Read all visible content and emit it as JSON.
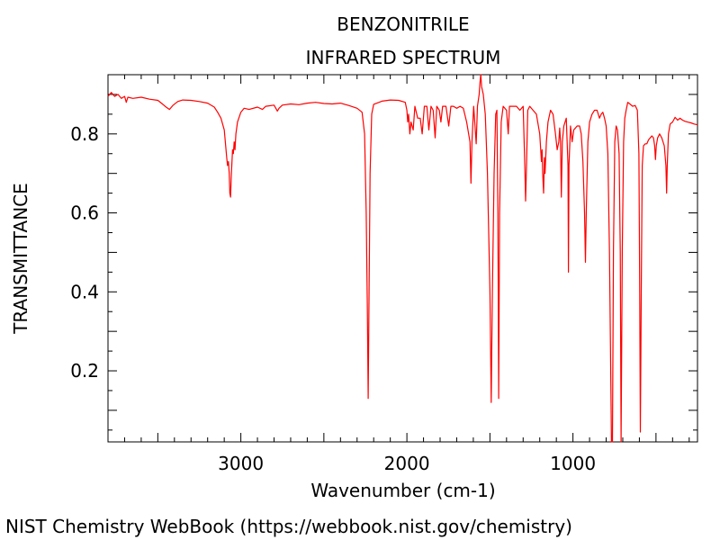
{
  "chart_data": {
    "type": "line",
    "title": "BENZONITRILE",
    "subtitle": "INFRARED SPECTRUM",
    "xlabel": "Wavenumber (cm-1)",
    "ylabel": "TRANSMITTANCE",
    "xlim": [
      3800,
      250
    ],
    "ylim": [
      0.02,
      0.95
    ],
    "x_reversed": true,
    "grid": false,
    "x_ticks": [
      {
        "value": 3000,
        "label": "3000"
      },
      {
        "value": 2000,
        "label": "2000"
      },
      {
        "value": 1000,
        "label": "1000"
      }
    ],
    "y_ticks": [
      {
        "value": 0.8,
        "label": "0.8"
      },
      {
        "value": 0.6,
        "label": "0.6"
      },
      {
        "value": 0.4,
        "label": "0.4"
      },
      {
        "value": 0.2,
        "label": "0.2"
      }
    ],
    "series": [
      {
        "color": "#ff0000",
        "points": [
          [
            3800,
            0.895
          ],
          [
            3780,
            0.905
          ],
          [
            3760,
            0.895
          ],
          [
            3740,
            0.9
          ],
          [
            3720,
            0.89
          ],
          [
            3700,
            0.895
          ],
          [
            3690,
            0.88
          ],
          [
            3680,
            0.893
          ],
          [
            3650,
            0.89
          ],
          [
            3600,
            0.893
          ],
          [
            3550,
            0.888
          ],
          [
            3500,
            0.885
          ],
          [
            3470,
            0.875
          ],
          [
            3450,
            0.868
          ],
          [
            3430,
            0.862
          ],
          [
            3410,
            0.872
          ],
          [
            3380,
            0.882
          ],
          [
            3350,
            0.886
          ],
          [
            3300,
            0.885
          ],
          [
            3250,
            0.882
          ],
          [
            3200,
            0.878
          ],
          [
            3160,
            0.868
          ],
          [
            3140,
            0.855
          ],
          [
            3120,
            0.84
          ],
          [
            3100,
            0.81
          ],
          [
            3085,
            0.74
          ],
          [
            3080,
            0.72
          ],
          [
            3075,
            0.73
          ],
          [
            3070,
            0.7
          ],
          [
            3066,
            0.65
          ],
          [
            3062,
            0.64
          ],
          [
            3058,
            0.69
          ],
          [
            3050,
            0.76
          ],
          [
            3045,
            0.75
          ],
          [
            3040,
            0.78
          ],
          [
            3035,
            0.76
          ],
          [
            3030,
            0.8
          ],
          [
            3020,
            0.83
          ],
          [
            3000,
            0.855
          ],
          [
            2980,
            0.865
          ],
          [
            2950,
            0.862
          ],
          [
            2900,
            0.868
          ],
          [
            2870,
            0.862
          ],
          [
            2850,
            0.87
          ],
          [
            2800,
            0.873
          ],
          [
            2780,
            0.858
          ],
          [
            2770,
            0.865
          ],
          [
            2750,
            0.873
          ],
          [
            2700,
            0.876
          ],
          [
            2650,
            0.874
          ],
          [
            2600,
            0.878
          ],
          [
            2550,
            0.88
          ],
          [
            2500,
            0.877
          ],
          [
            2450,
            0.876
          ],
          [
            2400,
            0.878
          ],
          [
            2350,
            0.872
          ],
          [
            2300,
            0.865
          ],
          [
            2270,
            0.855
          ],
          [
            2255,
            0.8
          ],
          [
            2245,
            0.6
          ],
          [
            2238,
            0.35
          ],
          [
            2233,
            0.13
          ],
          [
            2229,
            0.35
          ],
          [
            2222,
            0.7
          ],
          [
            2212,
            0.85
          ],
          [
            2200,
            0.875
          ],
          [
            2150,
            0.883
          ],
          [
            2100,
            0.886
          ],
          [
            2050,
            0.885
          ],
          [
            2010,
            0.88
          ],
          [
            2000,
            0.86
          ],
          [
            1995,
            0.83
          ],
          [
            1990,
            0.85
          ],
          [
            1982,
            0.8
          ],
          [
            1975,
            0.83
          ],
          [
            1962,
            0.81
          ],
          [
            1952,
            0.87
          ],
          [
            1935,
            0.84
          ],
          [
            1920,
            0.84
          ],
          [
            1908,
            0.8
          ],
          [
            1895,
            0.87
          ],
          [
            1880,
            0.87
          ],
          [
            1868,
            0.81
          ],
          [
            1855,
            0.87
          ],
          [
            1842,
            0.86
          ],
          [
            1830,
            0.79
          ],
          [
            1820,
            0.87
          ],
          [
            1805,
            0.86
          ],
          [
            1795,
            0.83
          ],
          [
            1785,
            0.87
          ],
          [
            1765,
            0.87
          ],
          [
            1748,
            0.82
          ],
          [
            1735,
            0.87
          ],
          [
            1720,
            0.87
          ],
          [
            1700,
            0.865
          ],
          [
            1680,
            0.87
          ],
          [
            1660,
            0.865
          ],
          [
            1640,
            0.83
          ],
          [
            1628,
            0.8
          ],
          [
            1620,
            0.78
          ],
          [
            1614,
            0.675
          ],
          [
            1608,
            0.78
          ],
          [
            1598,
            0.87
          ],
          [
            1590,
            0.82
          ],
          [
            1583,
            0.775
          ],
          [
            1575,
            0.87
          ],
          [
            1565,
            0.9
          ],
          [
            1560,
            0.93
          ],
          [
            1555,
            0.95
          ],
          [
            1550,
            0.92
          ],
          [
            1540,
            0.9
          ],
          [
            1528,
            0.85
          ],
          [
            1515,
            0.7
          ],
          [
            1500,
            0.4
          ],
          [
            1492,
            0.12
          ],
          [
            1485,
            0.4
          ],
          [
            1475,
            0.7
          ],
          [
            1465,
            0.85
          ],
          [
            1458,
            0.86
          ],
          [
            1452,
            0.6
          ],
          [
            1447,
            0.13
          ],
          [
            1442,
            0.6
          ],
          [
            1432,
            0.83
          ],
          [
            1420,
            0.87
          ],
          [
            1400,
            0.86
          ],
          [
            1390,
            0.8
          ],
          [
            1382,
            0.87
          ],
          [
            1360,
            0.87
          ],
          [
            1340,
            0.87
          ],
          [
            1320,
            0.86
          ],
          [
            1300,
            0.87
          ],
          [
            1290,
            0.72
          ],
          [
            1285,
            0.63
          ],
          [
            1280,
            0.72
          ],
          [
            1272,
            0.86
          ],
          [
            1260,
            0.87
          ],
          [
            1240,
            0.86
          ],
          [
            1220,
            0.85
          ],
          [
            1200,
            0.8
          ],
          [
            1190,
            0.73
          ],
          [
            1186,
            0.76
          ],
          [
            1182,
            0.7
          ],
          [
            1177,
            0.65
          ],
          [
            1172,
            0.74
          ],
          [
            1168,
            0.7
          ],
          [
            1160,
            0.78
          ],
          [
            1150,
            0.83
          ],
          [
            1135,
            0.86
          ],
          [
            1120,
            0.85
          ],
          [
            1105,
            0.8
          ],
          [
            1095,
            0.76
          ],
          [
            1085,
            0.78
          ],
          [
            1080,
            0.815
          ],
          [
            1075,
            0.78
          ],
          [
            1070,
            0.64
          ],
          [
            1064,
            0.78
          ],
          [
            1055,
            0.82
          ],
          [
            1040,
            0.84
          ],
          [
            1030,
            0.72
          ],
          [
            1027,
            0.45
          ],
          [
            1024,
            0.72
          ],
          [
            1015,
            0.82
          ],
          [
            1005,
            0.78
          ],
          [
            995,
            0.81
          ],
          [
            985,
            0.815
          ],
          [
            975,
            0.82
          ],
          [
            960,
            0.82
          ],
          [
            950,
            0.8
          ],
          [
            940,
            0.73
          ],
          [
            930,
            0.6
          ],
          [
            925,
            0.475
          ],
          [
            920,
            0.6
          ],
          [
            910,
            0.78
          ],
          [
            900,
            0.83
          ],
          [
            885,
            0.85
          ],
          [
            870,
            0.86
          ],
          [
            855,
            0.86
          ],
          [
            840,
            0.84
          ],
          [
            830,
            0.85
          ],
          [
            820,
            0.855
          ],
          [
            810,
            0.84
          ],
          [
            800,
            0.82
          ],
          [
            790,
            0.75
          ],
          [
            780,
            0.5
          ],
          [
            768,
            0.02
          ],
          [
            762,
            0.02
          ],
          [
            756,
            0.5
          ],
          [
            748,
            0.78
          ],
          [
            740,
            0.82
          ],
          [
            732,
            0.81
          ],
          [
            722,
            0.75
          ],
          [
            715,
            0.5
          ],
          [
            710,
            0.02
          ],
          [
            703,
            0.5
          ],
          [
            695,
            0.78
          ],
          [
            688,
            0.84
          ],
          [
            680,
            0.86
          ],
          [
            670,
            0.88
          ],
          [
            655,
            0.875
          ],
          [
            640,
            0.87
          ],
          [
            625,
            0.872
          ],
          [
            612,
            0.86
          ],
          [
            603,
            0.75
          ],
          [
            598,
            0.4
          ],
          [
            594,
            0.045
          ],
          [
            589,
            0.4
          ],
          [
            583,
            0.72
          ],
          [
            575,
            0.77
          ],
          [
            565,
            0.775
          ],
          [
            555,
            0.775
          ],
          [
            545,
            0.785
          ],
          [
            535,
            0.79
          ],
          [
            525,
            0.795
          ],
          [
            515,
            0.79
          ],
          [
            508,
            0.77
          ],
          [
            503,
            0.735
          ],
          [
            498,
            0.77
          ],
          [
            490,
            0.79
          ],
          [
            478,
            0.8
          ],
          [
            465,
            0.79
          ],
          [
            450,
            0.77
          ],
          [
            440,
            0.72
          ],
          [
            436,
            0.65
          ],
          [
            432,
            0.72
          ],
          [
            425,
            0.8
          ],
          [
            415,
            0.825
          ],
          [
            400,
            0.83
          ],
          [
            385,
            0.842
          ],
          [
            370,
            0.835
          ],
          [
            355,
            0.84
          ],
          [
            340,
            0.835
          ],
          [
            325,
            0.832
          ],
          [
            310,
            0.83
          ],
          [
            290,
            0.828
          ],
          [
            270,
            0.825
          ],
          [
            250,
            0.823
          ]
        ]
      }
    ]
  },
  "footer": {
    "credit": "NIST Chemistry WebBook (https://webbook.nist.gov/chemistry)"
  }
}
